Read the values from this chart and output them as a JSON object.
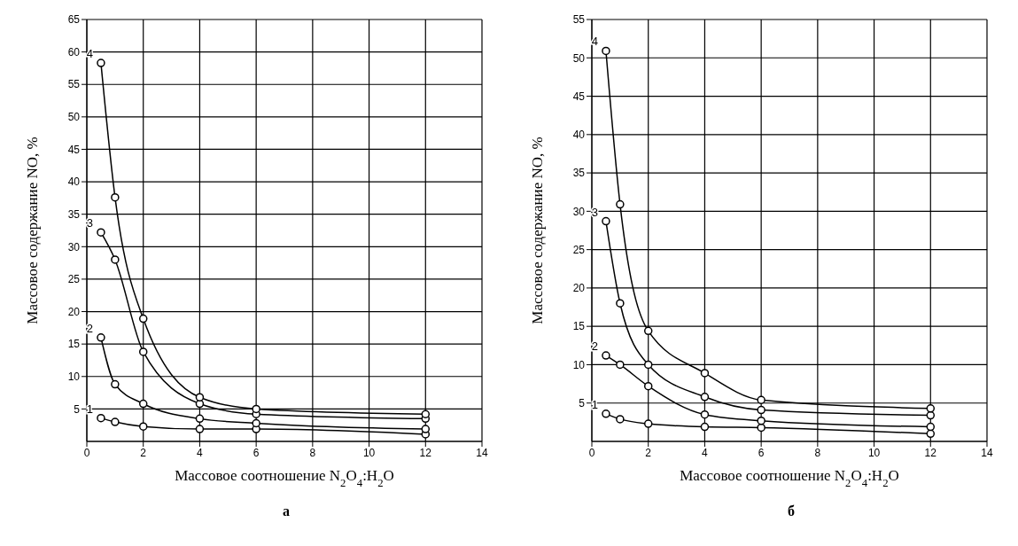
{
  "chart_data": [
    {
      "type": "line",
      "xlabel": "Массовое соотношение N$_{2}$O$_{4}$:H$_{2}$O",
      "ylabel": "Массовое содержание NO, %",
      "annotations": [
        "а"
      ],
      "x": [
        0.5,
        1,
        2,
        4,
        6,
        12
      ],
      "xlim": [
        0,
        14
      ],
      "xticks": [
        0,
        2,
        4,
        6,
        8,
        10,
        12,
        14
      ],
      "ylim": [
        0,
        65
      ],
      "yticks": [
        5,
        10,
        15,
        20,
        25,
        30,
        35,
        40,
        45,
        50,
        55,
        60,
        65
      ],
      "grid": true,
      "marker": "circle",
      "line_style": "solid",
      "series": [
        {
          "name": "1",
          "color": "#000000",
          "values": [
            3.6,
            3.0,
            2.3,
            1.9,
            1.9,
            1.1
          ]
        },
        {
          "name": "2",
          "color": "#000000",
          "values": [
            16,
            8.8,
            5.8,
            3.5,
            2.8,
            1.9
          ]
        },
        {
          "name": "3",
          "color": "#000000",
          "values": [
            32.2,
            28,
            13.8,
            5.8,
            4.2,
            3.5
          ]
        },
        {
          "name": "4",
          "color": "#000000",
          "values": [
            58.3,
            37.6,
            18.9,
            6.8,
            5.0,
            4.2
          ]
        }
      ]
    },
    {
      "type": "line",
      "xlabel": "Массовое соотношение N$_{2}$O$_{4}$:H$_{2}$O",
      "ylabel": "Массовое содержание NO, %",
      "annotations": [
        "б"
      ],
      "x": [
        0.5,
        1,
        2,
        4,
        6,
        12
      ],
      "xlim": [
        0,
        14
      ],
      "xticks": [
        0,
        2,
        4,
        6,
        8,
        10,
        12,
        14
      ],
      "ylim": [
        0,
        55
      ],
      "yticks": [
        5,
        10,
        15,
        20,
        25,
        30,
        35,
        40,
        45,
        50,
        55
      ],
      "grid": true,
      "marker": "circle",
      "line_style": "solid",
      "series": [
        {
          "name": "1",
          "color": "#000000",
          "values": [
            3.6,
            2.9,
            2.3,
            1.9,
            1.8,
            1.0
          ]
        },
        {
          "name": "2",
          "color": "#000000",
          "values": [
            11.2,
            10.0,
            7.2,
            3.5,
            2.7,
            1.9
          ]
        },
        {
          "name": "3",
          "color": "#000000",
          "values": [
            28.7,
            18.0,
            10.0,
            5.8,
            4.1,
            3.4
          ]
        },
        {
          "name": "4",
          "color": "#000000",
          "values": [
            50.9,
            30.9,
            14.4,
            8.9,
            5.4,
            4.3
          ]
        }
      ]
    }
  ]
}
